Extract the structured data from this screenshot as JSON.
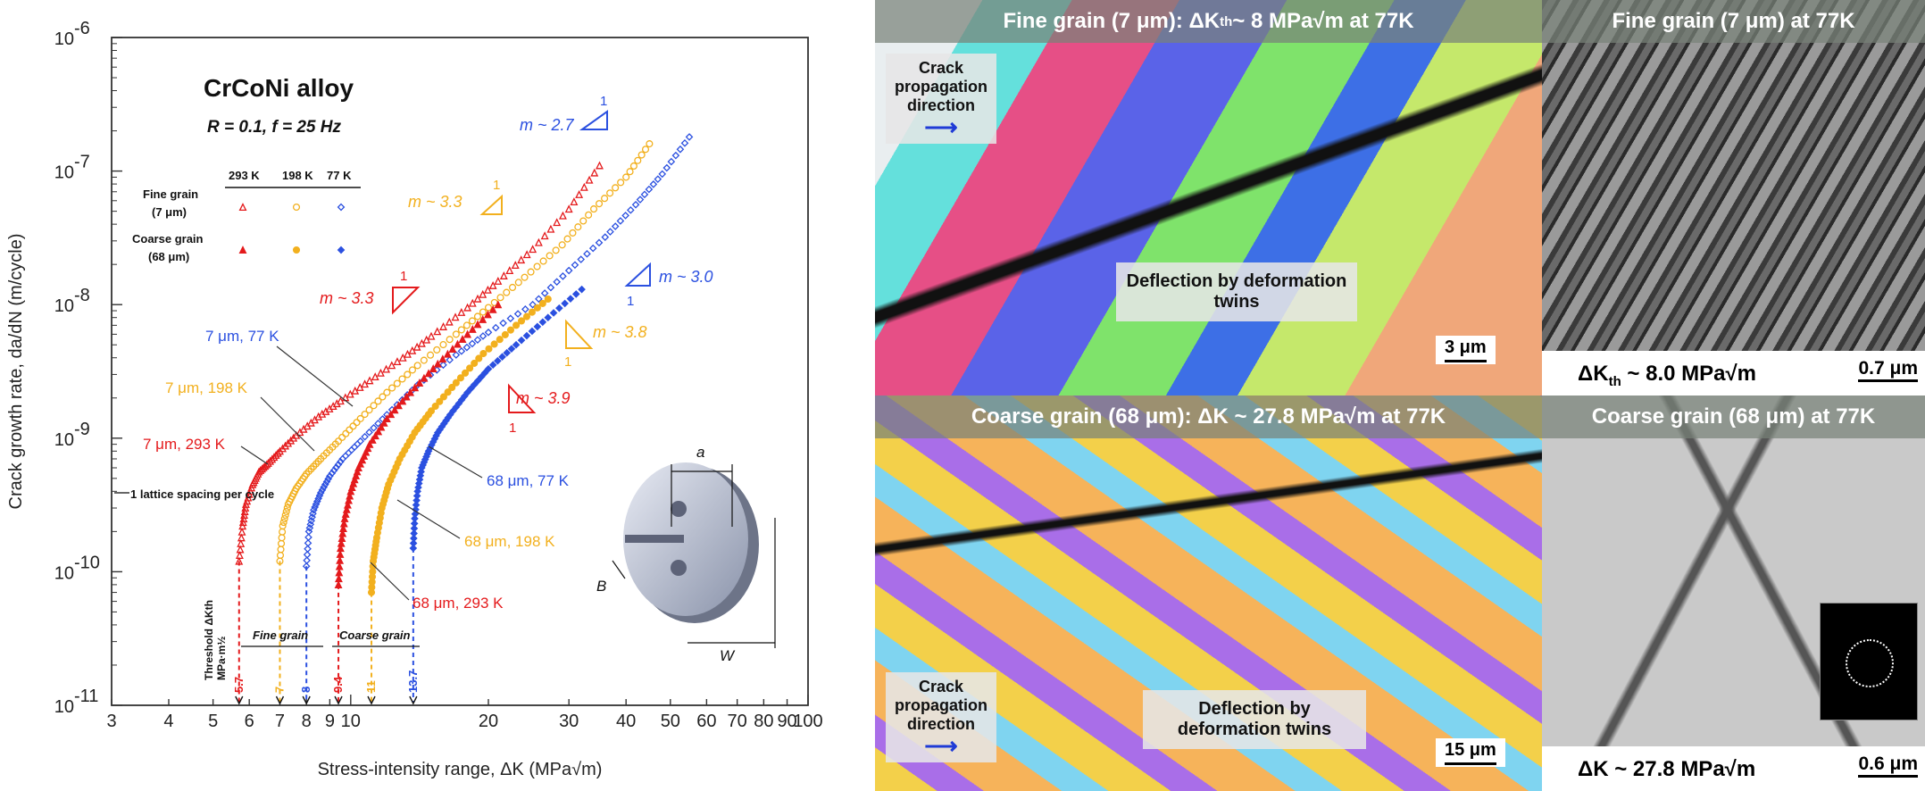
{
  "chart_data": {
    "type": "scatter",
    "title": "CrCoNi alloy",
    "subtitle": "R = 0.1, f = 25 Hz",
    "xlabel": "Stress-intensity range, ΔK (MPa√m)",
    "ylabel": "Crack growth rate, da/dN (m/cycle)",
    "x_scale": "log",
    "y_scale": "log",
    "xlim": [
      3,
      100
    ],
    "ylim": [
      1e-11,
      1e-06
    ],
    "x_ticks": [
      {
        "v": 3,
        "label": "3"
      },
      {
        "v": 4,
        "label": "4"
      },
      {
        "v": 5,
        "label": "5"
      },
      {
        "v": 6,
        "label": "6"
      },
      {
        "v": 7,
        "label": "7"
      },
      {
        "v": 8,
        "label": "8"
      },
      {
        "v": 9,
        "label": "9"
      },
      {
        "v": 10,
        "label": "10"
      },
      {
        "v": 20,
        "label": "20"
      },
      {
        "v": 30,
        "label": "30"
      },
      {
        "v": 40,
        "label": "40"
      },
      {
        "v": 50,
        "label": "50"
      },
      {
        "v": 60,
        "label": "60"
      },
      {
        "v": 70,
        "label": "70"
      },
      {
        "v": 80,
        "label": "80"
      },
      {
        "v": 90,
        "label": "90"
      },
      {
        "v": 100,
        "label": "100"
      }
    ],
    "y_ticks": [
      {
        "v": 1e-11,
        "mant": "10",
        "exp": "-11"
      },
      {
        "v": 1e-10,
        "mant": "10",
        "exp": "-10"
      },
      {
        "v": 1e-09,
        "mant": "10",
        "exp": "-9"
      },
      {
        "v": 1e-08,
        "mant": "10",
        "exp": "-8"
      },
      {
        "v": 1e-07,
        "mant": "10",
        "exp": "-7"
      },
      {
        "v": 1e-06,
        "mant": "10",
        "exp": "-6"
      }
    ],
    "legend": {
      "col_headers": [
        "293 K",
        "198 K",
        "77 K"
      ],
      "rows": [
        {
          "label": "Fine grain",
          "sub": "(7 μm)",
          "markers": [
            "triangle-open",
            "circle-open",
            "diamond-open"
          ]
        },
        {
          "label": "Coarse grain",
          "sub": "(68 μm)",
          "markers": [
            "triangle",
            "circle",
            "diamond"
          ]
        }
      ],
      "colors": [
        "#e41a1c",
        "#f2b01e",
        "#2b50e0"
      ]
    },
    "series": [
      {
        "name": "7 μm, 293 K",
        "color": "#e41a1c",
        "marker": "triangle-open",
        "x": [
          5.7,
          5.8,
          5.9,
          6.1,
          6.3,
          6.6,
          7.0,
          7.6,
          8.5,
          9.5,
          11,
          13,
          15,
          18,
          21,
          25,
          30,
          35
        ],
        "y": [
          1.2e-10,
          2.2e-10,
          3.2e-10,
          4.5e-10,
          5.6e-10,
          6.5e-10,
          8e-10,
          1.05e-09,
          1.45e-09,
          1.9e-09,
          2.7e-09,
          4e-09,
          5.8e-09,
          9.5e-09,
          1.5e-08,
          2.6e-08,
          5.2e-08,
          1.1e-07
        ]
      },
      {
        "name": "7 μm, 198 K",
        "color": "#f2b01e",
        "marker": "circle-open",
        "x": [
          7.0,
          7.1,
          7.3,
          7.6,
          8.0,
          8.6,
          9.4,
          10.5,
          12,
          14,
          17,
          20,
          24,
          29,
          34,
          40,
          45
        ],
        "y": [
          1.2e-10,
          2.2e-10,
          3.2e-10,
          4.2e-10,
          5.4e-10,
          7e-10,
          9.5e-10,
          1.4e-09,
          2.2e-09,
          3.5e-09,
          6e-09,
          9.5e-09,
          1.6e-08,
          2.8e-08,
          5.2e-08,
          9e-08,
          1.6e-07
        ]
      },
      {
        "name": "7 μm, 77 K",
        "color": "#2b50e0",
        "marker": "diamond-open",
        "x": [
          8.0,
          8.1,
          8.3,
          8.6,
          9.0,
          9.6,
          10.5,
          12,
          14,
          17,
          20,
          25,
          30,
          36,
          42,
          48,
          55
        ],
        "y": [
          1.1e-10,
          2e-10,
          2.9e-10,
          3.9e-10,
          5.2e-10,
          7e-10,
          9.5e-10,
          1.5e-09,
          2.5e-09,
          4.2e-09,
          6.2e-09,
          1e-08,
          1.8e-08,
          3.2e-08,
          5.6e-08,
          9.5e-08,
          1.8e-07
        ]
      },
      {
        "name": "68 μm, 293 K",
        "color": "#e41a1c",
        "marker": "triangle",
        "x": [
          9.4,
          9.5,
          9.7,
          10.0,
          10.4,
          11,
          12,
          13.5,
          15.5,
          18,
          21
        ],
        "y": [
          8e-11,
          1.5e-10,
          2.5e-10,
          4e-10,
          6e-10,
          9e-10,
          1.4e-09,
          2.2e-09,
          3.6e-09,
          6e-09,
          1e-08
        ]
      },
      {
        "name": "68 μm, 198 K",
        "color": "#f2b01e",
        "marker": "circle",
        "x": [
          11.1,
          11.2,
          11.4,
          11.7,
          12.1,
          12.8,
          13.8,
          15,
          17,
          19.5,
          23,
          27
        ],
        "y": [
          7e-11,
          1.2e-10,
          1.8e-10,
          3e-10,
          4.5e-10,
          7e-10,
          1.1e-09,
          1.6e-09,
          2.6e-09,
          4.3e-09,
          7e-09,
          1.1e-08
        ]
      },
      {
        "name": "68 μm, 77 K",
        "color": "#2b50e0",
        "marker": "diamond",
        "x": [
          13.7,
          13.8,
          14.0,
          14.3,
          14.8,
          15.5,
          16.5,
          18,
          20,
          23,
          27,
          32
        ],
        "y": [
          1.5e-10,
          2.5e-10,
          4e-10,
          6e-10,
          8e-10,
          1.1e-09,
          1.5e-09,
          2.2e-09,
          3.3e-09,
          5e-09,
          8e-09,
          1.3e-08
        ]
      }
    ],
    "curve_labels": [
      {
        "text": "7 μm, 293 K",
        "color": "#e41a1c"
      },
      {
        "text": "7 μm, 198 K",
        "color": "#f2b01e"
      },
      {
        "text": "7 μm, 77 K",
        "color": "#2b50e0"
      },
      {
        "text": "68 μm, 293 K",
        "color": "#e41a1c"
      },
      {
        "text": "68 μm, 198 K",
        "color": "#f2b01e"
      },
      {
        "text": "68 μm, 77 K",
        "color": "#2b50e0"
      }
    ],
    "slopes": [
      {
        "text": "m ~ 2.7",
        "color": "#2b50e0",
        "one": "1"
      },
      {
        "text": "m ~ 3.3",
        "color": "#f2b01e",
        "one": "1"
      },
      {
        "text": "m ~ 3.3",
        "color": "#e41a1c",
        "one": "1"
      },
      {
        "text": "m ~ 3.0",
        "color": "#2b50e0",
        "one": "1"
      },
      {
        "text": "m ~ 3.8",
        "color": "#f2b01e",
        "one": "1"
      },
      {
        "text": "m ~ 3.9",
        "color": "#e41a1c",
        "one": "1"
      }
    ],
    "thresholds": {
      "title": "Threshold ΔKth",
      "unit": "MPa·m½",
      "fine_label": "Fine grain",
      "coarse_label": "Coarse grain",
      "values": [
        {
          "x": 5.7,
          "label": "5.7",
          "color": "#e41a1c"
        },
        {
          "x": 7.0,
          "label": "7",
          "color": "#f2b01e"
        },
        {
          "x": 8.0,
          "label": "8",
          "color": "#2b50e0"
        },
        {
          "x": 9.4,
          "label": "9.4",
          "color": "#e41a1c"
        },
        {
          "x": 11.1,
          "label": "11",
          "color": "#f2b01e"
        },
        {
          "x": 13.7,
          "label": "13.7",
          "color": "#2b50e0"
        }
      ]
    },
    "lattice_note": "1 lattice spacing per cycle",
    "specimen_labels": [
      "a",
      "B",
      "W"
    ],
    "grid": false,
    "legend_position": "upper-left"
  },
  "panels": {
    "ebsd_top": {
      "header": "Fine grain (7 μm): ΔK",
      "header_sub": "th",
      "header_tail": " ~ 8 MPa√m at 77K",
      "crack_box": "Crack propagation direction",
      "twin_box": "Deflection by deformation twins",
      "scale": "3 μm"
    },
    "ebsd_bottom": {
      "header": "Coarse grain (68 μm): ΔK ~ 27.8 MPa√m at 77K",
      "crack_box": "Crack propagation direction",
      "twin_box": "Deflection by deformation twins",
      "scale": "15 μm"
    },
    "tem_top": {
      "header": "Fine grain (7 μm) at 77K",
      "caption": "ΔK",
      "caption_sub": "th",
      "caption_tail": " ~ 8.0 MPa√m",
      "scale": "0.7 μm"
    },
    "tem_bottom": {
      "header": "Coarse grain (68 μm) at 77K",
      "caption": "ΔK ~ 27.8 MPa√m",
      "scale": "0.6 μm"
    }
  }
}
